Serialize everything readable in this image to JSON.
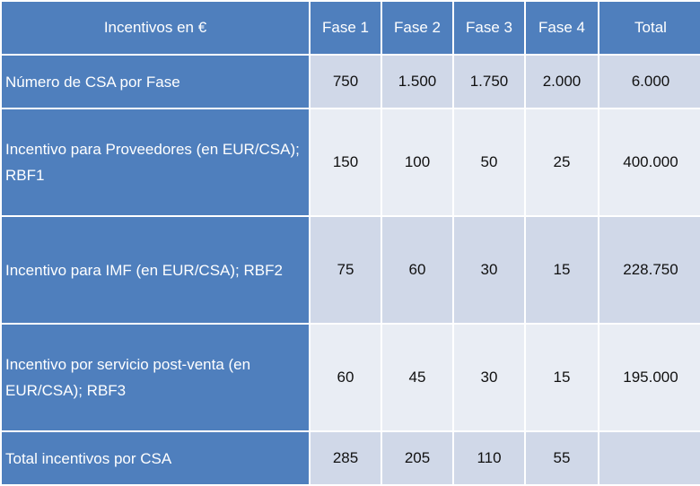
{
  "table": {
    "header": {
      "label": "Incentivos en €",
      "columns": [
        "Fase 1",
        "Fase 2",
        "Fase 3",
        "Fase 4",
        "Total"
      ]
    },
    "rows": [
      {
        "label": "Número de CSA por Fase",
        "values": [
          "750",
          "1.500",
          "1.750",
          "2.000",
          "6.000"
        ]
      },
      {
        "label": "Incentivo para Proveedores (en EUR/CSA); RBF1",
        "values": [
          "150",
          "100",
          "50",
          "25",
          "400.000"
        ]
      },
      {
        "label": "Incentivo para IMF (en EUR/CSA); RBF2",
        "values": [
          "75",
          "60",
          "30",
          "15",
          "228.750"
        ]
      },
      {
        "label": "Incentivo por servicio post-venta (en EUR/CSA); RBF3",
        "values": [
          "60",
          "45",
          "30",
          "15",
          "195.000"
        ]
      },
      {
        "label": "Total incentivos por CSA",
        "values": [
          "285",
          "205",
          "110",
          "55",
          ""
        ]
      }
    ]
  },
  "colors": {
    "header_blue": "#4f7fbd",
    "band_dark": "#d0d8e8",
    "band_light": "#e9edf4"
  }
}
